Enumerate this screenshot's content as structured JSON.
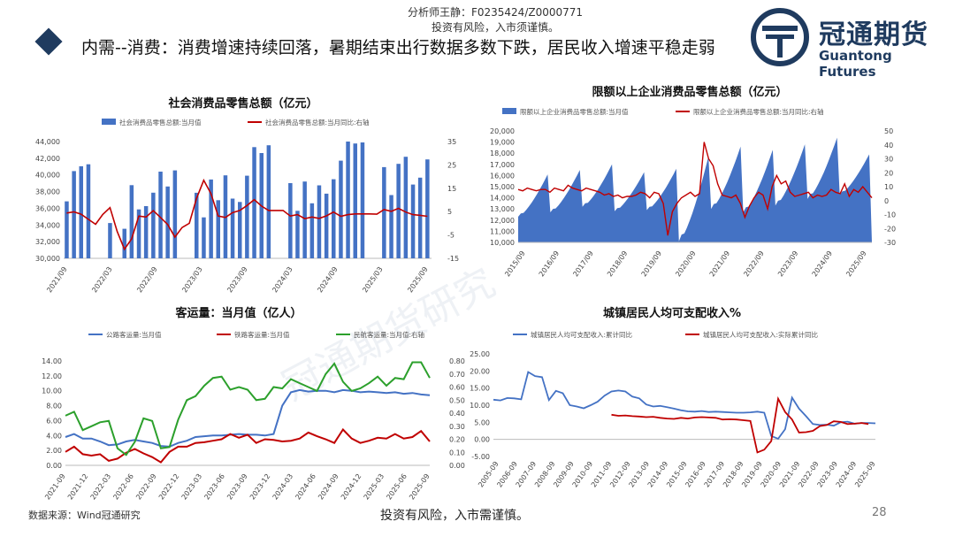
{
  "header": {
    "analyst_line1": "分析师王静：F0235424/Z0000771",
    "analyst_line2": "投资有风险，入市须谨慎。",
    "headline": "内需--消费：消费增速持续回落，暑期结束出行数据多数下跌，居民收入增速平稳走弱",
    "logo_cn": "冠通期货",
    "logo_en": "Guantong Futures",
    "brand_color": "#1f3b5f"
  },
  "footer": {
    "source": "数据来源：Wind冠通研究",
    "disclaimer": "投资有风险，入市需谨慎。",
    "page": "28"
  },
  "watermark": "冠通期货研究",
  "chart_data": [
    {
      "type": "bar",
      "title": "社会消费品零售总额（亿元）",
      "legend": [
        "社会消费品零售总额:当月值",
        "社会消费品零售总额:当月同比:右轴"
      ],
      "x_ticks": [
        "2021/09",
        "2022/03",
        "2022/09",
        "2023/03",
        "2023/09",
        "2024/03",
        "2024/09",
        "2025/03",
        "2025/09"
      ],
      "ylim_left": [
        30000,
        44000
      ],
      "yticks_left": [
        "30,000",
        "32,000",
        "34,000",
        "36,000",
        "38,000",
        "40,000",
        "42,000",
        "44,000"
      ],
      "ylim_right": [
        -15,
        35
      ],
      "yticks_right": [
        "-15",
        "-5",
        "5",
        "15",
        "25",
        "35"
      ],
      "series": [
        {
          "name": "社会消费品零售总额:当月值",
          "axis": "left",
          "color": "#4472c4",
          "values": [
            36830,
            40454,
            41043,
            41269,
            null,
            null,
            34233,
            29483,
            33547,
            38771,
            35870,
            36259,
            37872,
            40394,
            38615,
            40542,
            null,
            null,
            37855,
            34910,
            39450,
            36973,
            39951,
            37159,
            36761,
            39904,
            43333,
            42624,
            43550,
            null,
            null,
            39020,
            35699,
            39211,
            36596,
            38747,
            37757,
            39479,
            41711,
            44005,
            43763,
            43898,
            null,
            null,
            40940,
            37582,
            41326,
            42174,
            38841,
            39669,
            41861
          ]
        },
        {
          "name": "社会消费品零售总额:当月同比:右轴",
          "axis": "right",
          "color": "#c00000",
          "values": [
            4.4,
            4.9,
            3.9,
            1.7,
            -0.4,
            3.8,
            6.7,
            -3.5,
            -11.1,
            -6.7,
            3.1,
            2.7,
            5.4,
            2.5,
            -0.5,
            -5.9,
            -1.8,
            0.0,
            10.6,
            18.4,
            12.7,
            3.1,
            2.5,
            4.6,
            5.5,
            7.6,
            10.1,
            7.4,
            5.5,
            5.5,
            5.5,
            3.1,
            3.7,
            2.0,
            2.7,
            2.1,
            3.2,
            4.8,
            3.0,
            3.7,
            4.0,
            4.0,
            4.0,
            3.9,
            5.9,
            5.1,
            6.4,
            4.8,
            3.7,
            3.4,
            3.0
          ]
        }
      ]
    },
    {
      "type": "area",
      "title": "限额以上企业消费品零售总额（亿元）",
      "legend": [
        "限额以上企业消费品零售总额:当月值",
        "限额以上企业消费品零售总额:当月同比:右轴"
      ],
      "x_ticks": [
        "2015/09",
        "2016/09",
        "2017/09",
        "2018/09",
        "2019/09",
        "2020/09",
        "2021/09",
        "2022/09",
        "2023/09",
        "2024/09",
        "2025/09"
      ],
      "ylim_left": [
        10000,
        20000
      ],
      "yticks_left": [
        "10,000",
        "11,000",
        "12,000",
        "13,000",
        "14,000",
        "15,000",
        "16,000",
        "17,000",
        "18,000",
        "19,000",
        "20,000"
      ],
      "ylim_right": [
        -30,
        50
      ],
      "yticks_right": [
        "-30",
        "-20",
        "-10",
        "0",
        "10",
        "20",
        "30",
        "40",
        "50"
      ],
      "series": [
        {
          "name": "限额以上企业消费品零售总额:当月值",
          "axis": "left",
          "color": "#4472c4",
          "year_cycles": [
            {
              "start": 12300,
              "peak": 16100
            },
            {
              "start": 12700,
              "peak": 16500
            },
            {
              "start": 13200,
              "peak": 17000
            },
            {
              "start": 12800,
              "peak": 16300
            },
            {
              "start": 12900,
              "peak": 16600
            },
            {
              "start": 10100,
              "peak": 17700
            },
            {
              "start": 13000,
              "peak": 18600
            },
            {
              "start": 12700,
              "peak": 18300
            },
            {
              "start": 13300,
              "peak": 18800
            },
            {
              "start": 13900,
              "peak": 19400
            },
            {
              "start": 14300,
              "peak": 17900
            }
          ]
        },
        {
          "name": "限额以上企业消费品零售总额:当月同比:右轴",
          "axis": "right",
          "color": "#c00000",
          "values": [
            8,
            7,
            9,
            8,
            7,
            8,
            8,
            6,
            9,
            8,
            7,
            11,
            9,
            8,
            7,
            9,
            8,
            7,
            6,
            4,
            5,
            3,
            4,
            2,
            3,
            3,
            4,
            6,
            5,
            2,
            6,
            5,
            -2,
            -25,
            -8,
            -2,
            2,
            4,
            6,
            3,
            5,
            42,
            30,
            25,
            12,
            4,
            3,
            2,
            4,
            -2,
            -12,
            -4,
            2,
            6,
            4,
            -6,
            10,
            18,
            12,
            14,
            6,
            3,
            4,
            5,
            6,
            2,
            4,
            3,
            4,
            8,
            6,
            5,
            12,
            3,
            8,
            6,
            10,
            6,
            2
          ]
        }
      ]
    },
    {
      "type": "line",
      "title": "客运量：当月值（亿人）",
      "legend": [
        "公路客运量:当月值",
        "铁路客运量:当月值",
        "民航客运量:当月值:右轴"
      ],
      "x_ticks": [
        "2021-09",
        "2021-12",
        "2022-03",
        "2022-06",
        "2022-09",
        "2022-12",
        "2023-03",
        "2023-06",
        "2023-09",
        "2023-12",
        "2024-03",
        "2024-06",
        "2024-09",
        "2024-12",
        "2025-03",
        "2025-06",
        "2025-09"
      ],
      "ylim_left": [
        0,
        14
      ],
      "yticks_left": [
        "0.00",
        "2.00",
        "4.00",
        "6.00",
        "8.00",
        "10.00",
        "12.00",
        "14.00"
      ],
      "ylim_right": [
        0,
        0.8
      ],
      "yticks_right": [
        "0.00",
        "0.10",
        "0.20",
        "0.30",
        "0.40",
        "0.50",
        "0.60",
        "0.70",
        "0.80"
      ],
      "series": [
        {
          "name": "公路客运量:当月值",
          "axis": "left",
          "color": "#4472c4",
          "values": [
            3.8,
            4.2,
            3.6,
            3.6,
            3.2,
            2.7,
            2.8,
            3.2,
            3.4,
            3.2,
            3.0,
            2.6,
            2.5,
            3.0,
            3.3,
            3.8,
            3.9,
            4.0,
            4.0,
            4.1,
            4.2,
            4.1,
            4.1,
            4.0,
            4.2,
            8.0,
            9.8,
            10.1,
            9.9,
            10.0,
            10.0,
            9.8,
            10.1,
            10.0,
            9.8,
            9.9,
            9.8,
            9.7,
            9.8,
            9.6,
            9.7,
            9.5,
            9.4
          ]
        },
        {
          "name": "铁路客运量:当月值",
          "axis": "left",
          "color": "#c00000",
          "values": [
            1.8,
            2.5,
            1.5,
            1.3,
            1.5,
            0.6,
            0.9,
            1.7,
            2.2,
            1.6,
            1.1,
            0.4,
            1.8,
            2.5,
            2.5,
            3.0,
            3.1,
            3.3,
            3.5,
            4.2,
            3.7,
            4.1,
            3.0,
            3.5,
            3.4,
            3.2,
            3.3,
            3.6,
            4.4,
            3.9,
            3.5,
            3.0,
            4.8,
            3.6,
            3.0,
            3.3,
            3.7,
            3.6,
            4.2,
            3.6,
            3.8,
            4.6,
            3.2
          ]
        },
        {
          "name": "民航客运量:当月值:右轴",
          "axis": "right",
          "color": "#2ca02c",
          "values": [
            0.38,
            0.41,
            0.27,
            0.3,
            0.33,
            0.34,
            0.13,
            0.08,
            0.18,
            0.36,
            0.34,
            0.13,
            0.14,
            0.35,
            0.5,
            0.53,
            0.61,
            0.67,
            0.68,
            0.58,
            0.6,
            0.58,
            0.5,
            0.51,
            0.6,
            0.59,
            0.66,
            0.63,
            0.6,
            0.57,
            0.7,
            0.78,
            0.64,
            0.57,
            0.59,
            0.63,
            0.68,
            0.61,
            0.67,
            0.66,
            0.79,
            0.79,
            0.67
          ]
        }
      ]
    },
    {
      "type": "line",
      "title": "城镇居民人均可支配收入%",
      "legend": [
        "城镇居民人均可支配收入:累计同比",
        "城镇居民人均可支配收入:实际累计同比"
      ],
      "x_ticks": [
        "2005-09",
        "2006-09",
        "2007-09",
        "2008-09",
        "2009-09",
        "2010-09",
        "2011-09",
        "2012-09",
        "2013-09",
        "2014-09",
        "2015-09",
        "2016-09",
        "2017-09",
        "2018-09",
        "2019-09",
        "2020-09",
        "2021-09",
        "2022-09",
        "2023-09",
        "2024-09",
        "2025-09"
      ],
      "ylim_left": [
        -5,
        25
      ],
      "yticks_left": [
        "-5.00",
        "0.00",
        "5.00",
        "10.00",
        "15.00",
        "20.00",
        "25.00"
      ],
      "series": [
        {
          "name": "城镇居民人均可支配收入:累计同比",
          "axis": "left",
          "color": "#4472c4",
          "values": [
            11.6,
            11.4,
            12.1,
            12.0,
            11.7,
            19.7,
            18.5,
            18.2,
            11.5,
            14.2,
            13.5,
            10.0,
            9.6,
            9.1,
            10.0,
            11.0,
            12.8,
            14.0,
            14.3,
            14.0,
            12.5,
            12.0,
            10.2,
            9.6,
            9.8,
            9.4,
            9.0,
            8.5,
            8.2,
            8.1,
            8.3,
            8.0,
            8.1,
            8.0,
            7.9,
            7.8,
            7.8,
            7.9,
            8.1,
            7.8,
            1.0,
            0.2,
            3.0,
            12.2,
            9.0,
            6.8,
            4.5,
            4.2,
            4.3,
            4.0,
            5.0,
            5.2,
            4.6,
            4.8,
            4.8,
            4.7
          ]
        },
        {
          "name": "城镇居民人均可支配收入:实际累计同比",
          "axis": "left",
          "color": "#c00000",
          "start_index": 17,
          "values": [
            7.2,
            6.9,
            7.0,
            6.8,
            6.7,
            6.5,
            6.6,
            6.3,
            6.1,
            6.0,
            6.3,
            6.1,
            6.4,
            6.5,
            6.4,
            6.3,
            5.8,
            5.9,
            5.8,
            5.6,
            5.4,
            -3.8,
            -3.0,
            -0.5,
            11.9,
            8.0,
            5.8,
            2.0,
            2.1,
            2.5,
            3.9,
            4.2,
            5.3,
            5.1,
            4.5,
            4.6,
            4.8,
            4.5
          ]
        }
      ]
    }
  ]
}
